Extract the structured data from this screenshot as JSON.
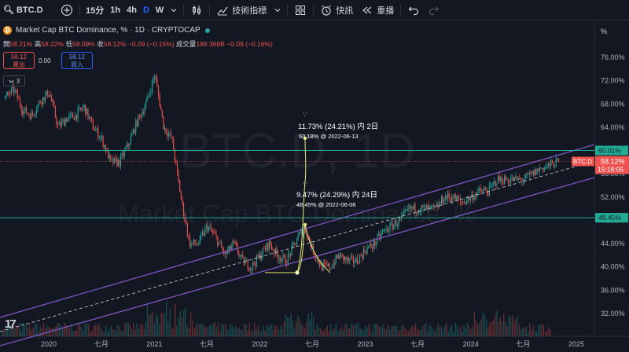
{
  "toolbar": {
    "symbol": "BTC.D",
    "timeframes": [
      "15分",
      "1h",
      "4h",
      "D",
      "W"
    ],
    "active_timeframe": "D",
    "indicators_label": "技術指標",
    "alert_label": "快訊",
    "replay_label": "重播"
  },
  "legend": {
    "coin_glyph": "₿",
    "title": "Market Cap BTC Dominance, % · 1D · CRYPTOCAP",
    "ohlc": {
      "open_label": "開",
      "open": "58.21%",
      "high_label": "高",
      "high": "58.22%",
      "low_label": "低",
      "low": "58.09%",
      "close_label": "收",
      "close": "58.12%",
      "change": "−0.09 (−0.15%)",
      "volume_label": "成交量",
      "volume": "188.368B",
      "volume_change": "−0.09 (−0.16%)"
    },
    "sell_price": "58.12",
    "sell_label": "賣出",
    "spread": "0.00",
    "buy_price": "58.12",
    "buy_label": "買入",
    "indicator_count": "3"
  },
  "chart_data": {
    "type": "candlestick",
    "watermark_symbol": "BTC.D, 1D",
    "watermark_name": "Market Cap BTC Dominance, %",
    "y_unit": "%",
    "ylim": [
      29.5,
      78
    ],
    "y_ticks": [
      "76.00%",
      "72.00%",
      "68.00%",
      "64.00%",
      "60.00%",
      "56.00%",
      "52.00%",
      "48.00%",
      "44.00%",
      "40.00%",
      "36.00%",
      "32.00%"
    ],
    "x_ticks": [
      "2020",
      "七月",
      "2021",
      "七月",
      "2022",
      "七月",
      "2023",
      "七月",
      "2024",
      "七月",
      "2025"
    ],
    "price_path": [
      [
        "2019-08",
        69
      ],
      [
        "2019-09",
        70.5
      ],
      [
        "2019-10",
        67
      ],
      [
        "2019-11",
        66
      ],
      [
        "2019-12",
        68.5
      ],
      [
        "2020-01",
        70
      ],
      [
        "2020-02",
        64
      ],
      [
        "2020-03",
        65.5
      ],
      [
        "2020-04",
        66
      ],
      [
        "2020-05",
        67.5
      ],
      [
        "2020-06",
        64
      ],
      [
        "2020-07",
        62
      ],
      [
        "2020-08",
        58
      ],
      [
        "2020-09",
        58
      ],
      [
        "2020-10",
        61
      ],
      [
        "2020-11",
        65
      ],
      [
        "2020-12",
        68
      ],
      [
        "2021-01",
        73
      ],
      [
        "2021-01-15",
        69
      ],
      [
        "2021-02",
        64
      ],
      [
        "2021-03",
        62
      ],
      [
        "2021-04",
        52
      ],
      [
        "2021-05",
        44
      ],
      [
        "2021-06",
        44
      ],
      [
        "2021-07",
        47
      ],
      [
        "2021-08",
        45
      ],
      [
        "2021-09",
        42
      ],
      [
        "2021-10",
        44
      ],
      [
        "2021-11",
        41
      ],
      [
        "2021-12",
        40
      ],
      [
        "2022-01",
        42
      ],
      [
        "2022-02",
        44
      ],
      [
        "2022-03",
        42
      ],
      [
        "2022-04",
        41
      ],
      [
        "2022-05",
        44
      ],
      [
        "2022-06",
        47
      ],
      [
        "2022-07",
        43
      ],
      [
        "2022-08",
        40
      ],
      [
        "2022-09",
        40
      ],
      [
        "2022-10",
        42
      ],
      [
        "2022-11",
        41
      ],
      [
        "2022-12",
        41
      ],
      [
        "2023-01",
        43
      ],
      [
        "2023-02",
        44
      ],
      [
        "2023-03",
        46
      ],
      [
        "2023-04",
        47
      ],
      [
        "2023-05",
        48
      ],
      [
        "2023-06",
        50
      ],
      [
        "2023-07",
        50
      ],
      [
        "2023-08",
        50
      ],
      [
        "2023-09",
        50
      ],
      [
        "2023-10",
        52
      ],
      [
        "2023-11",
        52
      ],
      [
        "2023-12",
        51
      ],
      [
        "2024-01",
        52
      ],
      [
        "2024-02",
        53
      ],
      [
        "2024-03",
        53
      ],
      [
        "2024-04",
        55
      ],
      [
        "2024-05",
        55
      ],
      [
        "2024-06",
        55
      ],
      [
        "2024-07",
        55
      ],
      [
        "2024-08",
        56
      ],
      [
        "2024-09",
        57
      ],
      [
        "2024-10",
        57.5
      ],
      [
        "2024-11",
        58.12
      ]
    ],
    "horizontal_lines": [
      {
        "value": "60.01%",
        "label": "60.01%"
      },
      {
        "value": "48.45%",
        "label": "48.45%"
      }
    ],
    "current_price": {
      "symbol": "BTC.D",
      "value": "58.12%",
      "countdown": "15:18:05"
    },
    "measure_annotations": [
      {
        "text": "11.73% (24.21%) 内 2日",
        "detail": "60.18% @ 2022-06-13"
      },
      {
        "text": "9.47% (24.29%) 内 24日",
        "detail": "48.45% @ 2022-06-06"
      }
    ]
  },
  "colors": {
    "background": "#131722",
    "up": "#26a69a",
    "down": "#ef5350",
    "channel": "#7e57c2",
    "hline": "#22ab94",
    "measure": "#e8e87a",
    "price_label": "#ef5350"
  }
}
